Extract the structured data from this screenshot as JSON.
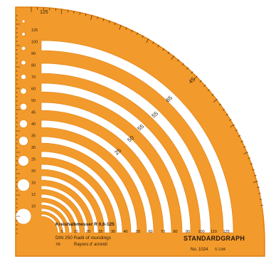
{
  "template": {
    "title_line1": "Kreishalbmesser  R 0,6-125",
    "title_line2": "DIN 250  Radii of roundings",
    "title_line3": "Rayons d' arrondi",
    "brand": "STANDARDGRAPH",
    "model": "No. 1024",
    "small_mark": "7/6",
    "small_mark2": "© 2.84",
    "top_scale_label": "125",
    "radii_labels": [
      "125",
      "100",
      "90",
      "80",
      "70",
      "60",
      "50",
      "45",
      "40",
      "35",
      "30",
      "25",
      "20",
      "16",
      "12",
      "10",
      "8"
    ],
    "hole_labels": [
      "1",
      "2",
      "3",
      "4",
      "5",
      "6",
      "8",
      "10",
      "12",
      "15",
      "20"
    ],
    "arc_labels": [
      "45",
      "65",
      "55",
      "55",
      "50",
      "25"
    ],
    "bottom_labels": [
      "5",
      "10",
      "20",
      "25",
      "30",
      "40",
      "50",
      "60",
      "70",
      "80",
      "90",
      "100",
      "110",
      "125"
    ]
  },
  "colors": {
    "body": "#f29a2b",
    "edge": "#e07f10",
    "ink": "#2a1a0a",
    "cutout": "#ffffff"
  }
}
